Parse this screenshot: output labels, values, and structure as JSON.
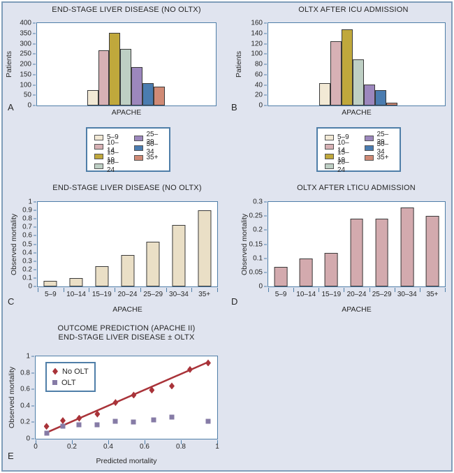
{
  "figure": {
    "background": "#e0e4ef",
    "border_color": "#7f9db9",
    "plot_border_color": "#4f7ea8",
    "text_color": "#262626"
  },
  "apache_legend": {
    "columns": [
      4,
      3
    ],
    "items": [
      {
        "label": "5–9",
        "color": "#f2e9d5"
      },
      {
        "label": "10–14",
        "color": "#d7b1b5"
      },
      {
        "label": "15–19",
        "color": "#c0a83c"
      },
      {
        "label": "20–24",
        "color": "#becfc4"
      },
      {
        "label": "25–29",
        "color": "#9c87bd"
      },
      {
        "label": "30–34",
        "color": "#4a7cb0"
      },
      {
        "label": "35+",
        "color": "#d08a75"
      }
    ]
  },
  "chart_data": [
    {
      "panel_letter": "A",
      "type": "bar",
      "subtype": "histogram",
      "title": "END-STAGE LIVER DISEASE (NO OLTX)",
      "ylabel": "Patients",
      "xlabel": "APACHE",
      "categories": [
        "5–9",
        "10–14",
        "15–19",
        "20–24",
        "25–29",
        "30–34",
        "35+"
      ],
      "values": [
        73,
        268,
        353,
        276,
        185,
        108,
        90
      ],
      "ylim": [
        0,
        400
      ],
      "ytick_labels": [
        "0",
        "50",
        "100",
        "150",
        "200",
        "250",
        "300",
        "350",
        "400"
      ],
      "grid": false,
      "bar_group_start_frac": 0.28,
      "bar_width_frac": 0.062
    },
    {
      "panel_letter": "B",
      "type": "bar",
      "subtype": "histogram",
      "title": "OLTX AFTER ICU ADMISSION",
      "ylabel": "Patients",
      "xlabel": "APACHE",
      "categories": [
        "5–9",
        "10–14",
        "15–19",
        "20–24",
        "25–29",
        "30–34",
        "35+"
      ],
      "values": [
        43,
        125,
        148,
        89,
        41,
        30,
        6
      ],
      "ylim": [
        0,
        160
      ],
      "ytick_labels": [
        "0",
        "20",
        "40",
        "60",
        "80",
        "100",
        "120",
        "140",
        "160"
      ],
      "grid": false,
      "bar_group_start_frac": 0.29,
      "bar_width_frac": 0.063
    },
    {
      "panel_letter": "C",
      "type": "bar",
      "subtype": "category",
      "title": "END-STAGE LIVER DISEASE (NO OLTX)",
      "ylabel": "Observed mortality",
      "xlabel": "APACHE",
      "categories": [
        "5–9",
        "10–14",
        "15–19",
        "20–24",
        "25–29",
        "30–34",
        "35+"
      ],
      "values": [
        0.07,
        0.1,
        0.24,
        0.37,
        0.53,
        0.73,
        0.9
      ],
      "ylim": [
        0,
        1
      ],
      "ytick_labels": [
        "0",
        "0.1",
        "0.2",
        "0.3",
        "0.4",
        "0.5",
        "0.6",
        "0.7",
        "0.8",
        "0.9",
        "1"
      ],
      "grid": false,
      "bar_color": "#eadfc6"
    },
    {
      "panel_letter": "D",
      "type": "bar",
      "subtype": "category",
      "title": "OLTX AFTER LTICU ADMISSION",
      "ylabel": "Observed mortality",
      "xlabel": "APACHE",
      "categories": [
        "5–9",
        "10–14",
        "15–19",
        "20–24",
        "25–29",
        "30–34",
        "35+"
      ],
      "values": [
        0.07,
        0.1,
        0.12,
        0.24,
        0.24,
        0.28,
        0.25
      ],
      "ylim": [
        0,
        0.3
      ],
      "ytick_labels": [
        "0",
        "0.05",
        "0.1",
        "0.15",
        "0.2",
        "0.25",
        "0.3"
      ],
      "grid": false,
      "bar_color": "#d3aaae"
    },
    {
      "panel_letter": "E",
      "type": "scatter",
      "title_lines": [
        "OUTCOME PREDICTION (APACHE II)",
        "END-STAGE LIVER DISEASE ± OLTX"
      ],
      "ylabel": "Observed mortality",
      "xlabel": "Predicted mortality",
      "xlim": [
        0,
        1
      ],
      "ylim": [
        0,
        1
      ],
      "xtick_labels": [
        "0",
        "0.2",
        "0.4",
        "0.6",
        "0.8",
        "1"
      ],
      "ytick_labels": [
        "0",
        "0.2",
        "0.4",
        "0.6",
        "0.8",
        "1"
      ],
      "grid": false,
      "legend_position": "top-left",
      "series": [
        {
          "name": "No OLT",
          "marker": "diamond",
          "color": "#a93339",
          "points": [
            [
              0.06,
              0.15
            ],
            [
              0.15,
              0.22
            ],
            [
              0.24,
              0.25
            ],
            [
              0.34,
              0.3
            ],
            [
              0.44,
              0.44
            ],
            [
              0.54,
              0.53
            ],
            [
              0.64,
              0.59
            ],
            [
              0.75,
              0.64
            ],
            [
              0.85,
              0.84
            ],
            [
              0.95,
              0.92
            ]
          ]
        },
        {
          "name": "OLT",
          "marker": "square",
          "color": "#867ba6",
          "points": [
            [
              0.06,
              0.07
            ],
            [
              0.15,
              0.15
            ],
            [
              0.24,
              0.17
            ],
            [
              0.34,
              0.17
            ],
            [
              0.44,
              0.21
            ],
            [
              0.54,
              0.2
            ],
            [
              0.65,
              0.23
            ],
            [
              0.75,
              0.26
            ],
            [
              0.95,
              0.21
            ]
          ]
        }
      ],
      "trend_line": {
        "x1": 0.05,
        "y1": 0.065,
        "x2": 0.95,
        "y2": 0.93,
        "color": "#a93339"
      }
    }
  ]
}
